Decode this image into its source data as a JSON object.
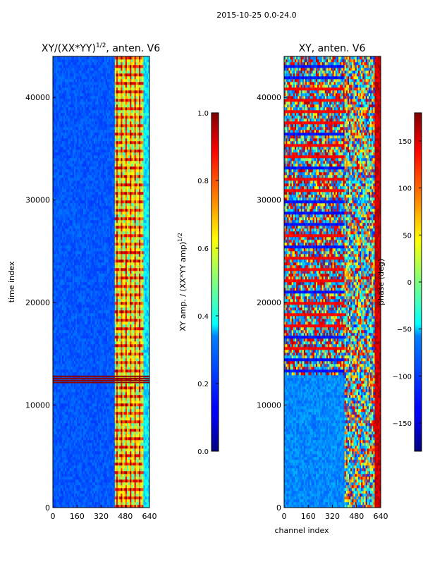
{
  "figure_title": "2015-10-25 0.0-24.0",
  "shared_xlabel": "channel index",
  "chart_data": [
    {
      "type": "heatmap",
      "title_main": "XY/(XX*YY)",
      "title_sup": "1/2",
      "title_rest": ", anten. V6",
      "xlabel": "",
      "ylabel": "time index",
      "xlim": [
        0,
        640
      ],
      "ylim": [
        0,
        44000
      ],
      "x_ticks": [
        0,
        160,
        320,
        480,
        640
      ],
      "y_ticks": [
        0,
        10000,
        20000,
        30000,
        40000
      ],
      "colormap": "jet",
      "colorbar": {
        "label_main": "XY amp. / (XX*YY amp)",
        "label_sup": "1/2",
        "range": [
          0.0,
          1.0
        ],
        "ticks": [
          0.0,
          0.2,
          0.4,
          0.6,
          0.8,
          1.0
        ],
        "tick_labels": [
          "0.0",
          "0.2",
          "0.4",
          "0.6",
          "0.8",
          "1.0"
        ]
      },
      "bright_channel_band": [
        410,
        640
      ],
      "saturated_time_rows": [
        12200,
        12400,
        12600,
        12800
      ]
    },
    {
      "type": "heatmap",
      "title_main": "XY, anten. V6",
      "xlabel": "channel index",
      "ylabel": "",
      "xlim": [
        0,
        640
      ],
      "ylim": [
        0,
        44000
      ],
      "x_ticks": [
        0,
        160,
        320,
        480,
        640
      ],
      "y_ticks": [
        0,
        10000,
        20000,
        30000,
        40000
      ],
      "colormap": "jet",
      "colorbar": {
        "label_main": "phase (deg)",
        "range": [
          -180,
          180
        ],
        "ticks": [
          -150,
          -100,
          -50,
          0,
          50,
          100,
          150
        ],
        "tick_labels": [
          "−150",
          "−100",
          "−50",
          "0",
          "50",
          "100",
          "150"
        ]
      },
      "edge_channel_band": [
        600,
        640
      ],
      "mixed_channel_band": [
        400,
        600
      ],
      "turbulent_time_range": [
        13000,
        44000
      ]
    }
  ]
}
